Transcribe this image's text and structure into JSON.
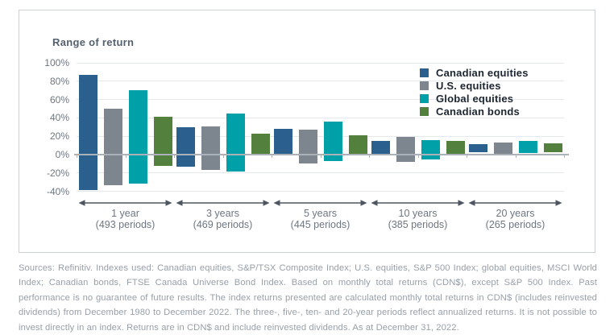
{
  "chart_data": {
    "type": "floating-bar-range",
    "title": "Range of return",
    "units": "%",
    "grid": true,
    "legend_position": "top-right",
    "y_axis": {
      "min": -40,
      "max": 100,
      "step": 20,
      "ticks": [
        {
          "value": 100,
          "label": "100%"
        },
        {
          "value": 80,
          "label": "80%"
        },
        {
          "value": 60,
          "label": "60%"
        },
        {
          "value": 40,
          "label": "40%"
        },
        {
          "value": 20,
          "label": "20%"
        },
        {
          "value": 0,
          "label": "0%"
        },
        {
          "value": -20,
          "label": "-20%"
        },
        {
          "value": -40,
          "label": "-40%"
        }
      ]
    },
    "groups": [
      {
        "label": "1 year",
        "sub": "(493 periods)"
      },
      {
        "label": "3 years",
        "sub": "(469 periods)"
      },
      {
        "label": "5 years",
        "sub": "(445 periods)"
      },
      {
        "label": "10 years",
        "sub": "(385 periods)"
      },
      {
        "label": "20 years",
        "sub": "(265 periods)"
      }
    ],
    "series": [
      {
        "name": "Canadian equities",
        "color": "#2b5f8e",
        "ranges": [
          [
            -39,
            87
          ],
          [
            -13,
            30
          ],
          [
            -1,
            28
          ],
          [
            1,
            15
          ],
          [
            3,
            11
          ]
        ]
      },
      {
        "name": "U.S. equities",
        "color": "#7d868f",
        "ranges": [
          [
            -33,
            50
          ],
          [
            -17,
            31
          ],
          [
            -10,
            27
          ],
          [
            -8,
            19
          ],
          [
            1,
            13
          ]
        ]
      },
      {
        "name": "Global equities",
        "color": "#00a0a9",
        "ranges": [
          [
            -32,
            70
          ],
          [
            -18,
            45
          ],
          [
            -7,
            36
          ],
          [
            -5,
            16
          ],
          [
            2,
            15
          ]
        ]
      },
      {
        "name": "Canadian bonds",
        "color": "#53803c",
        "ranges": [
          [
            -12,
            41
          ],
          [
            0,
            23
          ],
          [
            1,
            21
          ],
          [
            1,
            15
          ],
          [
            3,
            12
          ]
        ]
      }
    ]
  },
  "footer": {
    "text": "Sources: Refinitiv. Indexes used: Canadian equities, S&P/TSX Composite Index; U.S. equities, S&P 500 Index; global equities, MSCI World Index; Canadian bonds, FTSE Canada Universe Bond Index. Based on monthly total returns (CDN$), except S&P 500 Index. Past performance is no guarantee of future results. The index returns presented are calculated monthly total returns in CDN$ (includes reinvested dividends) from December 1980 to December 2022. The three-, five-, ten- and 20-year periods reflect annualized returns. It is not possible to invest directly in an index. Returns are in CDN$ and include reinvested dividends. As at December 31, 2022."
  }
}
